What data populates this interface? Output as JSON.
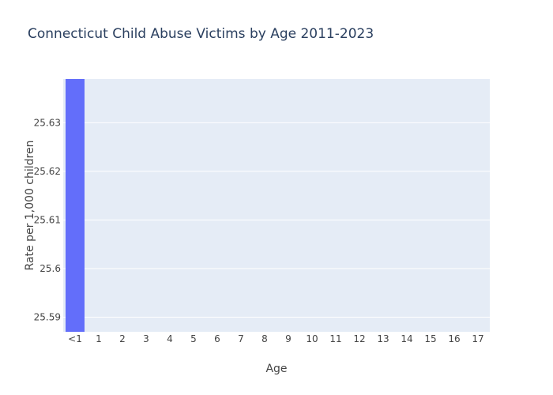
{
  "chart_data": {
    "type": "bar",
    "title": "Connecticut Child Abuse Victims by Age 2011-2023",
    "xlabel": "Age",
    "ylabel": "Rate per 1,000 children",
    "categories": [
      "<1",
      "1",
      "2",
      "3",
      "4",
      "5",
      "6",
      "7",
      "8",
      "9",
      "10",
      "11",
      "12",
      "13",
      "14",
      "15",
      "16",
      "17"
    ],
    "values": [
      25.64,
      null,
      null,
      null,
      null,
      null,
      null,
      null,
      null,
      null,
      null,
      null,
      null,
      null,
      null,
      null,
      null,
      null
    ],
    "ylim": [
      25.587,
      25.639
    ],
    "yticks": [
      25.59,
      25.6,
      25.61,
      25.62,
      25.63
    ],
    "ytick_labels": [
      "25.59",
      "25.6",
      "25.61",
      "25.62",
      "25.63"
    ],
    "grid": true,
    "colors": {
      "bar": "#636efa",
      "plot_bg": "#e5ecf6",
      "grid": "#ffffff",
      "title": "#2a3f5f"
    }
  }
}
